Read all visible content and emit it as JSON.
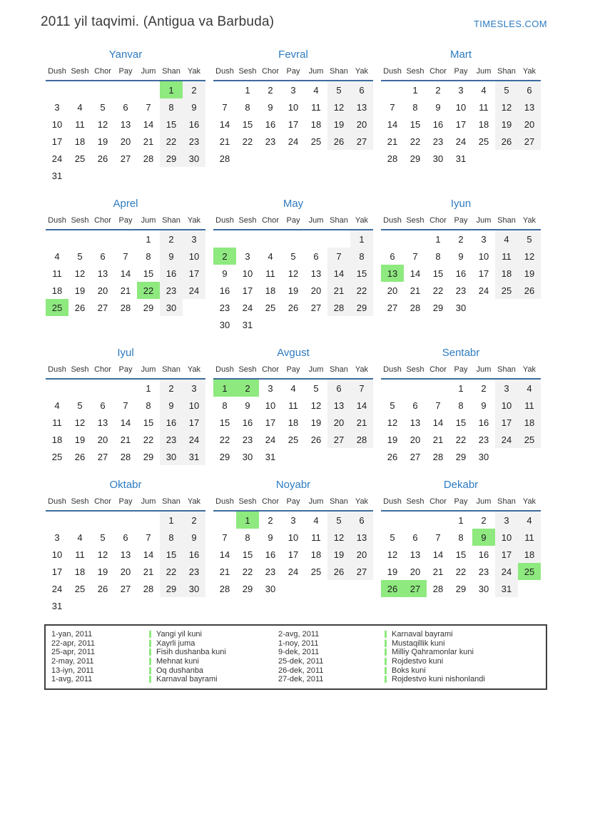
{
  "header": {
    "title": "2011 yil taqvimi. (Antigua va Barbuda)",
    "site": "TIMESLES.COM"
  },
  "weekdays": [
    "Dush",
    "Sesh",
    "Chor",
    "Pay",
    "Jum",
    "Shan",
    "Yak"
  ],
  "colors": {
    "holiday_green": "#8ee97f",
    "weekend_gray": "#f2f2f2",
    "month_title_blue": "#2d7bc0",
    "header_rule_blue": "#3d6b9e",
    "site_link_blue": "#2d7bc0",
    "legend_border": "#3f3f3f"
  },
  "months": [
    {
      "name": "Yanvar",
      "weeks": [
        [
          null,
          null,
          null,
          null,
          null,
          1,
          2
        ],
        [
          3,
          4,
          5,
          6,
          7,
          8,
          9
        ],
        [
          10,
          11,
          12,
          13,
          14,
          15,
          16
        ],
        [
          17,
          18,
          19,
          20,
          21,
          22,
          23
        ],
        [
          24,
          25,
          26,
          27,
          28,
          29,
          30
        ],
        [
          31,
          null,
          null,
          null,
          null,
          null,
          null
        ]
      ],
      "holidays": [
        1
      ]
    },
    {
      "name": "Fevral",
      "weeks": [
        [
          null,
          1,
          2,
          3,
          4,
          5,
          6
        ],
        [
          7,
          8,
          9,
          10,
          11,
          12,
          13
        ],
        [
          14,
          15,
          16,
          17,
          18,
          19,
          20
        ],
        [
          21,
          22,
          23,
          24,
          25,
          26,
          27
        ],
        [
          28,
          null,
          null,
          null,
          null,
          null,
          null
        ]
      ],
      "holidays": []
    },
    {
      "name": "Mart",
      "weeks": [
        [
          null,
          1,
          2,
          3,
          4,
          5,
          6
        ],
        [
          7,
          8,
          9,
          10,
          11,
          12,
          13
        ],
        [
          14,
          15,
          16,
          17,
          18,
          19,
          20
        ],
        [
          21,
          22,
          23,
          24,
          25,
          26,
          27
        ],
        [
          28,
          29,
          30,
          31,
          null,
          null,
          null
        ]
      ],
      "holidays": []
    },
    {
      "name": "Aprel",
      "weeks": [
        [
          null,
          null,
          null,
          null,
          1,
          2,
          3
        ],
        [
          4,
          5,
          6,
          7,
          8,
          9,
          10
        ],
        [
          11,
          12,
          13,
          14,
          15,
          16,
          17
        ],
        [
          18,
          19,
          20,
          21,
          22,
          23,
          24
        ],
        [
          25,
          26,
          27,
          28,
          29,
          30,
          null
        ]
      ],
      "holidays": [
        22,
        25
      ]
    },
    {
      "name": "May",
      "weeks": [
        [
          null,
          null,
          null,
          null,
          null,
          null,
          1
        ],
        [
          2,
          3,
          4,
          5,
          6,
          7,
          8
        ],
        [
          9,
          10,
          11,
          12,
          13,
          14,
          15
        ],
        [
          16,
          17,
          18,
          19,
          20,
          21,
          22
        ],
        [
          23,
          24,
          25,
          26,
          27,
          28,
          29
        ],
        [
          30,
          31,
          null,
          null,
          null,
          null,
          null
        ]
      ],
      "holidays": [
        2
      ]
    },
    {
      "name": "Iyun",
      "weeks": [
        [
          null,
          null,
          1,
          2,
          3,
          4,
          5
        ],
        [
          6,
          7,
          8,
          9,
          10,
          11,
          12
        ],
        [
          13,
          14,
          15,
          16,
          17,
          18,
          19
        ],
        [
          20,
          21,
          22,
          23,
          24,
          25,
          26
        ],
        [
          27,
          28,
          29,
          30,
          null,
          null,
          null
        ]
      ],
      "holidays": [
        13
      ]
    },
    {
      "name": "Iyul",
      "weeks": [
        [
          null,
          null,
          null,
          null,
          1,
          2,
          3
        ],
        [
          4,
          5,
          6,
          7,
          8,
          9,
          10
        ],
        [
          11,
          12,
          13,
          14,
          15,
          16,
          17
        ],
        [
          18,
          19,
          20,
          21,
          22,
          23,
          24
        ],
        [
          25,
          26,
          27,
          28,
          29,
          30,
          31
        ]
      ],
      "holidays": []
    },
    {
      "name": "Avgust",
      "weeks": [
        [
          1,
          2,
          3,
          4,
          5,
          6,
          7
        ],
        [
          8,
          9,
          10,
          11,
          12,
          13,
          14
        ],
        [
          15,
          16,
          17,
          18,
          19,
          20,
          21
        ],
        [
          22,
          23,
          24,
          25,
          26,
          27,
          28
        ],
        [
          29,
          30,
          31,
          null,
          null,
          null,
          null
        ]
      ],
      "holidays": [
        1,
        2
      ]
    },
    {
      "name": "Sentabr",
      "weeks": [
        [
          null,
          null,
          null,
          1,
          2,
          3,
          4
        ],
        [
          5,
          6,
          7,
          8,
          9,
          10,
          11
        ],
        [
          12,
          13,
          14,
          15,
          16,
          17,
          18
        ],
        [
          19,
          20,
          21,
          22,
          23,
          24,
          25
        ],
        [
          26,
          27,
          28,
          29,
          30,
          null,
          null
        ]
      ],
      "holidays": []
    },
    {
      "name": "Oktabr",
      "weeks": [
        [
          null,
          null,
          null,
          null,
          null,
          1,
          2
        ],
        [
          3,
          4,
          5,
          6,
          7,
          8,
          9
        ],
        [
          10,
          11,
          12,
          13,
          14,
          15,
          16
        ],
        [
          17,
          18,
          19,
          20,
          21,
          22,
          23
        ],
        [
          24,
          25,
          26,
          27,
          28,
          29,
          30
        ],
        [
          31,
          null,
          null,
          null,
          null,
          null,
          null
        ]
      ],
      "holidays": []
    },
    {
      "name": "Noyabr",
      "weeks": [
        [
          null,
          1,
          2,
          3,
          4,
          5,
          6
        ],
        [
          7,
          8,
          9,
          10,
          11,
          12,
          13
        ],
        [
          14,
          15,
          16,
          17,
          18,
          19,
          20
        ],
        [
          21,
          22,
          23,
          24,
          25,
          26,
          27
        ],
        [
          28,
          29,
          30,
          null,
          null,
          null,
          null
        ]
      ],
      "holidays": [
        1
      ]
    },
    {
      "name": "Dekabr",
      "weeks": [
        [
          null,
          null,
          null,
          1,
          2,
          3,
          4
        ],
        [
          5,
          6,
          7,
          8,
          9,
          10,
          11
        ],
        [
          12,
          13,
          14,
          15,
          16,
          17,
          18
        ],
        [
          19,
          20,
          21,
          22,
          23,
          24,
          25
        ],
        [
          26,
          27,
          28,
          29,
          30,
          31,
          null
        ]
      ],
      "holidays": [
        9,
        25,
        26,
        27
      ]
    }
  ],
  "legend": {
    "left": [
      {
        "date": "1-yan, 2011",
        "name": "Yangi yil kuni"
      },
      {
        "date": "22-apr, 2011",
        "name": "Xayrli juma"
      },
      {
        "date": "25-apr, 2011",
        "name": "Fisih dushanba kuni"
      },
      {
        "date": "2-may, 2011",
        "name": "Mehnat kuni"
      },
      {
        "date": "13-iyn, 2011",
        "name": "Oq dushanba"
      },
      {
        "date": "1-avg, 2011",
        "name": "Karnaval bayrami"
      }
    ],
    "right": [
      {
        "date": "2-avg, 2011",
        "name": "Karnaval bayrami"
      },
      {
        "date": "1-noy, 2011",
        "name": "Mustaqillik kuni"
      },
      {
        "date": "9-dek, 2011",
        "name": "Milliy Qahramonlar kuni"
      },
      {
        "date": "25-dek, 2011",
        "name": "Rojdestvo kuni"
      },
      {
        "date": "26-dek, 2011",
        "name": "Boks kuni"
      },
      {
        "date": "27-dek, 2011",
        "name": "Rojdestvo kuni nishonlandi"
      }
    ]
  }
}
